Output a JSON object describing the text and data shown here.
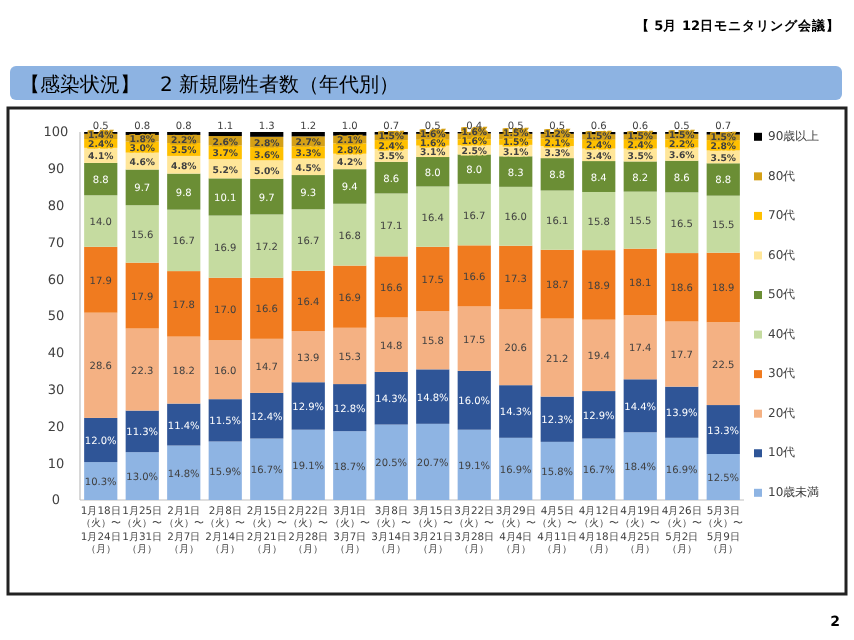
{
  "chart_data": {
    "type": "bar",
    "stacked": true,
    "title": "【感染状況】　2 新規陽性者数（年代別）",
    "annotations": [
      "【 5月 12日モニタリング会議】",
      "2"
    ],
    "categories": [
      "1月18日（火）〜1月24日（月）",
      "1月25日（火）〜1月31日（月）",
      "2月1日（火）〜2月7日（月）",
      "2月8日（火）〜2月14日（月）",
      "2月15日（火）〜2月21日（月）",
      "2月22日（火）〜2月28日（月）",
      "3月1日（火）〜3月7日（月）",
      "3月8日（火）〜3月14日（月）",
      "3月15日（火）〜3月21日（月）",
      "3月22日（火）〜3月28日（月）",
      "3月29日（火）〜4月4日（月）",
      "4月5日（火）〜4月11日（月）",
      "4月12日（火）〜4月18日（月）",
      "4月19日（火）〜4月25日（月）",
      "4月26日（火）〜5月2日（月）",
      "5月3日（火）〜5月9日（月）"
    ],
    "ylim": [
      0,
      100
    ],
    "yticks": [
      0,
      10,
      20,
      30,
      40,
      50,
      60,
      70,
      80,
      90,
      100
    ],
    "legend": "right",
    "series": [
      {
        "name": "10歳未満",
        "color": "#8eb4e3",
        "values": [
          10.3,
          13.0,
          14.8,
          15.9,
          16.7,
          19.1,
          18.7,
          20.5,
          20.7,
          19.1,
          16.9,
          15.8,
          16.7,
          18.4,
          16.9,
          12.5
        ],
        "value_labels": [
          "10.3%",
          "13.0%",
          "14.8%",
          "15.9%",
          "16.7%",
          "19.1%",
          "18.7%",
          "20.5%",
          "20.7%",
          "19.1%",
          "16.9%",
          "15.8%",
          "16.7%",
          "18.4%",
          "16.9%",
          "12.5%"
        ]
      },
      {
        "name": "10代",
        "color": "#2f5597",
        "values": [
          12.0,
          11.3,
          11.4,
          11.5,
          12.4,
          12.9,
          12.8,
          14.3,
          14.8,
          16.0,
          14.3,
          12.3,
          12.9,
          14.4,
          13.9,
          13.3
        ],
        "value_labels": [
          "12.0%",
          "11.3%",
          "11.4%",
          "11.5%",
          "12.4%",
          "12.9%",
          "12.8%",
          "14.3%",
          "14.8%",
          "16.0%",
          "14.3%",
          "12.3%",
          "12.9%",
          "14.4%",
          "13.9%",
          "13.3%"
        ]
      },
      {
        "name": "20代",
        "color": "#f4b183",
        "values": [
          28.6,
          22.3,
          18.2,
          16.0,
          14.7,
          13.9,
          15.3,
          14.8,
          15.8,
          17.5,
          20.6,
          21.2,
          19.4,
          17.4,
          17.7,
          22.5
        ],
        "value_labels": [
          "28.6",
          "22.3",
          "18.2",
          "16.0",
          "14.7",
          "13.9",
          "15.3",
          "14.8",
          "15.8",
          "17.5",
          "20.6",
          "21.2",
          "19.4",
          "17.4",
          "17.7",
          "22.5"
        ]
      },
      {
        "name": "30代",
        "color": "#f07b1f",
        "values": [
          17.9,
          17.9,
          17.8,
          17.0,
          16.6,
          16.4,
          16.9,
          16.6,
          17.5,
          16.6,
          17.3,
          18.7,
          18.9,
          18.1,
          18.6,
          18.9
        ],
        "value_labels": [
          "17.9",
          "17.9",
          "17.8",
          "17.0",
          "16.6",
          "16.4",
          "16.9",
          "16.6",
          "17.5",
          "16.6",
          "17.3",
          "18.7",
          "18.9",
          "18.1",
          "18.6",
          "18.9"
        ]
      },
      {
        "name": "40代",
        "color": "#c5dba0",
        "values": [
          14.0,
          15.6,
          16.7,
          16.9,
          17.2,
          16.7,
          16.8,
          17.1,
          16.4,
          16.7,
          16.0,
          16.1,
          15.8,
          15.5,
          16.5,
          15.5
        ],
        "value_labels": [
          "14.0",
          "15.6",
          "16.7",
          "16.9",
          "17.2",
          "16.7",
          "16.8",
          "17.1",
          "16.4",
          "16.7",
          "16.0",
          "16.1",
          "15.8",
          "15.5",
          "16.5",
          "15.5"
        ]
      },
      {
        "name": "50代",
        "color": "#6b8e35",
        "values": [
          8.8,
          9.7,
          9.8,
          10.1,
          9.7,
          9.3,
          9.4,
          8.6,
          8.0,
          8.0,
          8.3,
          8.8,
          8.4,
          8.2,
          8.6,
          8.8
        ],
        "value_labels": [
          "8.8",
          "9.7",
          "9.8",
          "10.1",
          "9.7",
          "9.3",
          "9.4",
          "8.6",
          "8.0",
          "8.0",
          "8.3",
          "8.8",
          "8.4",
          "8.2",
          "8.6",
          "8.8"
        ]
      },
      {
        "name": "60代",
        "color": "#ffe699",
        "values": [
          4.1,
          4.6,
          4.8,
          5.2,
          5.0,
          4.5,
          4.2,
          3.5,
          3.1,
          2.5,
          3.1,
          3.3,
          3.4,
          3.5,
          3.6,
          3.5
        ],
        "value_labels": [
          "4.1%",
          "4.6%",
          "4.8%",
          "5.2%",
          "5.0%",
          "4.5%",
          "4.2%",
          "3.5%",
          "3.1%",
          "2.5%",
          "3.1%",
          "3.3%",
          "3.4%",
          "3.5%",
          "3.6%",
          "3.5%"
        ]
      },
      {
        "name": "70代",
        "color": "#ffc000",
        "values": [
          2.4,
          3.0,
          3.5,
          3.7,
          3.6,
          3.3,
          2.8,
          2.4,
          1.6,
          1.6,
          1.5,
          2.1,
          2.4,
          2.4,
          2.2,
          2.8
        ],
        "value_labels": [
          "2.4%",
          "3.0%",
          "3.5%",
          "3.7%",
          "3.6%",
          "3.3%",
          "2.8%",
          "2.4%",
          "1.6%",
          "1.6%",
          "1.5%",
          "2.1%",
          "2.4%",
          "2.4%",
          "2.2%",
          "2.8%"
        ]
      },
      {
        "name": "80代",
        "color": "#d4a017",
        "values": [
          1.4,
          1.8,
          2.2,
          2.6,
          2.8,
          2.7,
          2.1,
          1.5,
          1.6,
          1.6,
          1.5,
          1.2,
          1.5,
          1.5,
          1.5,
          1.5
        ],
        "value_labels": [
          "1.4%",
          "1.8%",
          "2.2%",
          "2.6%",
          "2.8%",
          "2.7%",
          "2.1%",
          "1.5%",
          "1.6%",
          "1.6%",
          "1.5%",
          "1.2%",
          "1.5%",
          "1.5%",
          "1.5%",
          "1.5%"
        ]
      },
      {
        "name": "90歳以上",
        "color": "#000000",
        "values": [
          0.5,
          0.8,
          0.8,
          1.1,
          1.3,
          1.2,
          1.0,
          0.7,
          0.5,
          0.4,
          0.5,
          0.5,
          0.6,
          0.6,
          0.5,
          0.7
        ],
        "value_labels": [
          "0.5",
          "0.8",
          "0.8",
          "1.1",
          "1.3",
          "1.2",
          "1.0",
          "0.7",
          "0.5",
          "0.4",
          "0.5",
          "0.5",
          "0.6",
          "0.6",
          "0.5",
          "0.7"
        ]
      }
    ]
  }
}
